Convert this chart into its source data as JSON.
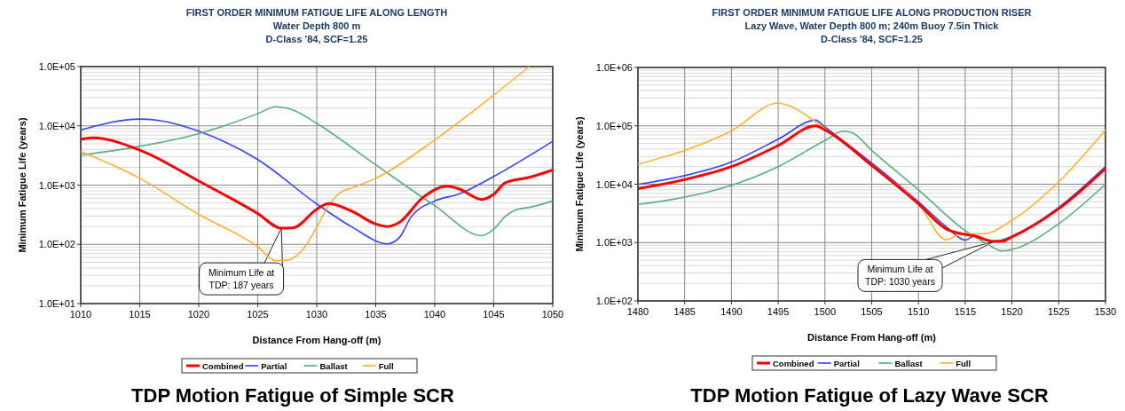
{
  "chart_data": [
    {
      "type": "line",
      "title": "FIRST ORDER MINIMUM FATIGUE LIFE ALONG LENGTH",
      "subtitle": "Water Depth 800 m\nD-Class '84, SCF=1.25",
      "xlabel": "Distance From Hang-off (m)",
      "ylabel": "Minimum Fatigue Life (years)",
      "log": "y",
      "grid": true,
      "legend": "bottom",
      "marker": "none",
      "line_style": "solid",
      "xlim": [
        1010,
        1050
      ],
      "xticks": [
        1010,
        1015,
        1020,
        1025,
        1030,
        1035,
        1040,
        1045,
        1050
      ],
      "ylim": [
        10,
        100000
      ],
      "yticks": [
        {
          "value": 10,
          "label": "1.0E+01"
        },
        {
          "value": 100,
          "label": "1.0E+02"
        },
        {
          "value": 1000,
          "label": "1.0E+03"
        },
        {
          "value": 10000,
          "label": "1.0E+04"
        },
        {
          "value": 100000,
          "label": "1.0E+05"
        }
      ],
      "series": [
        {
          "name": "Combined",
          "color": "#ff0000",
          "x": [
            1010,
            1011,
            1015,
            1020,
            1025,
            1027,
            1028,
            1030,
            1031,
            1033,
            1035,
            1036,
            1037,
            1039,
            1041,
            1042,
            1044,
            1045,
            1046,
            1048,
            1050
          ],
          "values": [
            5900,
            6300,
            3900,
            1170,
            330,
            187,
            190,
            390,
            490,
            360,
            220,
            200,
            235,
            620,
            960,
            870,
            570,
            700,
            1100,
            1350,
            1800
          ]
        },
        {
          "name": "Partial",
          "color": "#3344ff",
          "x": [
            1010,
            1015,
            1017,
            1020,
            1025,
            1030,
            1033,
            1036,
            1037,
            1038,
            1040,
            1042,
            1045,
            1050
          ],
          "values": [
            8500,
            13000,
            12000,
            8100,
            2700,
            480,
            195,
            102,
            130,
            290,
            540,
            700,
            1400,
            5500
          ]
        },
        {
          "name": "Ballast",
          "color": "#5aaf7e",
          "x": [
            1010,
            1015,
            1020,
            1025,
            1026.5,
            1028,
            1030,
            1035,
            1040,
            1044,
            1045,
            1046,
            1047,
            1048,
            1050
          ],
          "values": [
            3200,
            4500,
            7400,
            16000,
            21000,
            18500,
            11000,
            2200,
            450,
            140,
            180,
            300,
            390,
            420,
            540
          ]
        },
        {
          "name": "Full",
          "color": "#ffb030",
          "x": [
            1010,
            1015,
            1020,
            1025,
            1026.5,
            1027.5,
            1029,
            1030,
            1031,
            1032,
            1033,
            1035,
            1040,
            1045,
            1048
          ],
          "values": [
            3700,
            1300,
            320,
            91,
            53,
            54,
            91,
            195,
            450,
            750,
            900,
            1300,
            5800,
            33000,
            100000
          ]
        }
      ],
      "annotations": [
        {
          "text": "Minimum Life at\nTDP: 187 years",
          "x": 1027,
          "y": 187
        },
        "TDP Motion Fatigue of Simple SCR"
      ]
    },
    {
      "type": "line",
      "title": "FIRST ORDER MINIMUM FATIGUE LIFE ALONG PRODUCTION RISER",
      "subtitle": "Lazy Wave, Water Depth 800 m; 240m Buoy 7.5in Thick\nD-Class '84, SCF=1.25",
      "xlabel": "Distance From Hang-off (m)",
      "ylabel": "Minimum Fatigue Life (years)",
      "log": "y",
      "grid": true,
      "legend": "bottom",
      "marker": "none",
      "line_style": "solid",
      "xlim": [
        1480,
        1530
      ],
      "xticks": [
        1480,
        1485,
        1490,
        1495,
        1500,
        1505,
        1510,
        1515,
        1520,
        1525,
        1530
      ],
      "ylim": [
        100,
        1000000
      ],
      "yticks": [
        {
          "value": 100,
          "label": "1.0E+02"
        },
        {
          "value": 1000,
          "label": "1.0E+03"
        },
        {
          "value": 10000,
          "label": "1.0E+04"
        },
        {
          "value": 100000,
          "label": "1.0E+05"
        },
        {
          "value": 1000000,
          "label": "1.0E+06"
        }
      ],
      "series": [
        {
          "name": "Combined",
          "color": "#ff0000",
          "x": [
            1480,
            1485,
            1490,
            1495,
            1499,
            1500,
            1505,
            1510,
            1513,
            1515,
            1516,
            1518,
            1519,
            1520,
            1525,
            1530
          ],
          "values": [
            8400,
            12000,
            20000,
            46000,
            100000,
            85000,
            21000,
            4600,
            1700,
            1380,
            1300,
            1050,
            1060,
            1250,
            3800,
            18600
          ]
        },
        {
          "name": "Partial",
          "color": "#3344ff",
          "x": [
            1480,
            1485,
            1490,
            1495,
            1499,
            1500,
            1505,
            1510,
            1513,
            1515,
            1516,
            1518,
            1520,
            1525,
            1530
          ],
          "values": [
            9900,
            14000,
            24000,
            59000,
            125000,
            95000,
            23000,
            5000,
            1850,
            1100,
            1300,
            1030,
            1280,
            4000,
            20000
          ]
        },
        {
          "name": "Ballast",
          "color": "#5aaf7e",
          "x": [
            1480,
            1485,
            1490,
            1495,
            1500,
            1502,
            1503,
            1505,
            1510,
            1515,
            1517,
            1519,
            1520,
            1525,
            1530
          ],
          "values": [
            4500,
            6000,
            9600,
            20000,
            56000,
            81000,
            75000,
            38000,
            8000,
            1600,
            1020,
            720,
            760,
            2100,
            10000
          ]
        },
        {
          "name": "Full",
          "color": "#ffb030",
          "x": [
            1480,
            1485,
            1490,
            1495,
            1496,
            1500,
            1505,
            1510,
            1513,
            1514,
            1515,
            1517,
            1520,
            1525,
            1530
          ],
          "values": [
            22000,
            38000,
            82000,
            247000,
            225000,
            89000,
            21000,
            4600,
            1120,
            1300,
            1420,
            1420,
            2400,
            11000,
            85000
          ]
        }
      ],
      "annotations": [
        {
          "text": "Minimum Life at\nTDP: 1030 years",
          "x": 1518,
          "y": 1030
        },
        "TDP Motion Fatigue of Lazy Wave SCR"
      ]
    }
  ]
}
